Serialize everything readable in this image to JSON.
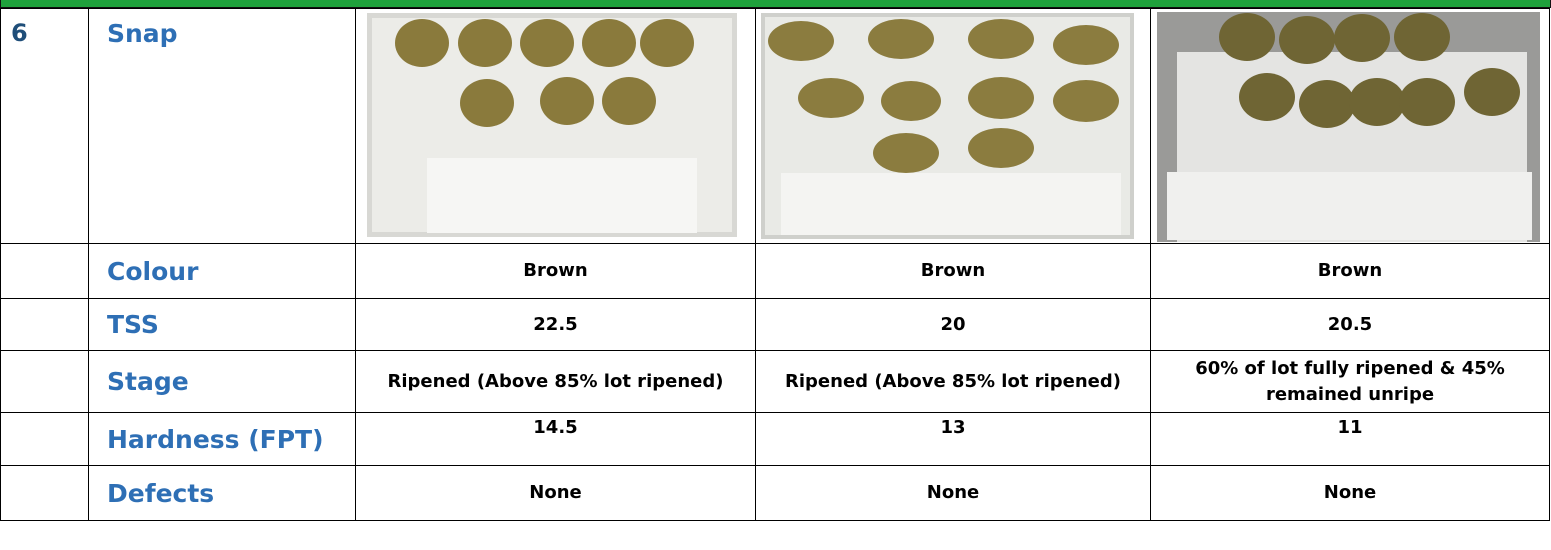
{
  "table": {
    "rows": [
      {
        "number": "6",
        "label": "Snap"
      },
      {
        "label": "Colour",
        "cells": [
          "Brown",
          "Brown",
          "Brown"
        ]
      },
      {
        "label": "TSS",
        "cells": [
          "22.5",
          "20",
          "20.5"
        ]
      },
      {
        "label": "Stage",
        "cells": [
          "Ripened (Above 85% lot ripened)",
          "Ripened (Above 85% lot ripened)",
          "60% of lot fully ripened & 45% remained unripe"
        ]
      },
      {
        "label": "Hardness (FPT)",
        "cells": [
          "14.5",
          "13",
          "11"
        ]
      },
      {
        "label": "Defects",
        "cells": [
          "None",
          "None",
          "None"
        ]
      }
    ]
  }
}
